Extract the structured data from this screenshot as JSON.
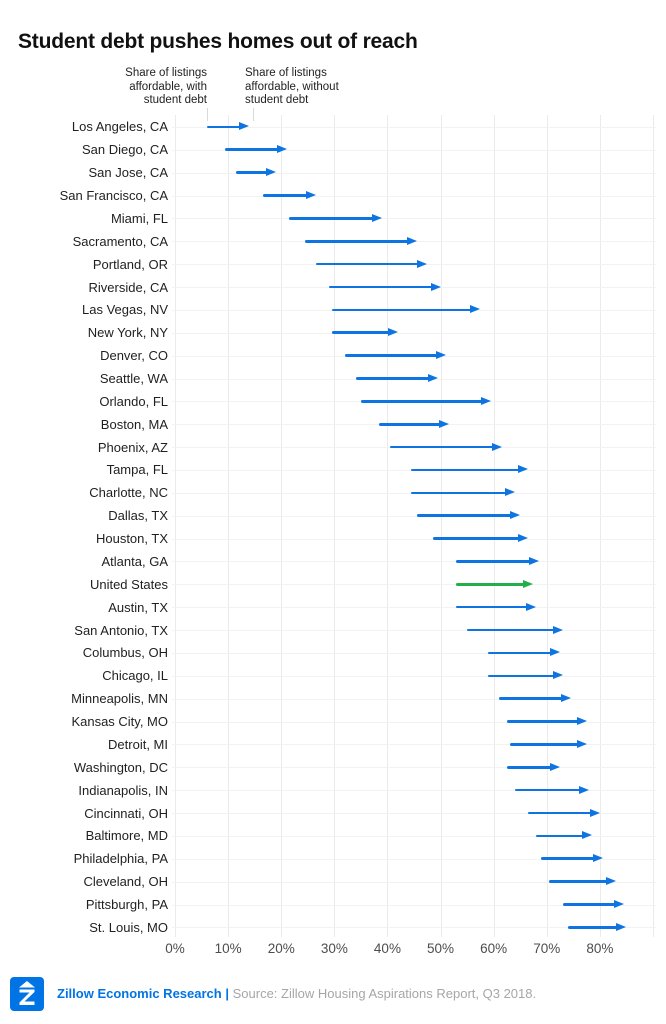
{
  "title": "Student debt pushes homes out of reach",
  "annotations": {
    "left": [
      "Share of listings",
      "affordable, with",
      "student debt"
    ],
    "right": [
      "Share of listings",
      "affordable, without",
      "student debt"
    ]
  },
  "chart_data": {
    "type": "bar",
    "variant": "arrow-dumbbell",
    "orientation": "horizontal",
    "title": "Student debt pushes homes out of reach",
    "categories": [
      "Los Angeles, CA",
      "San Diego, CA",
      "San Jose, CA",
      "San Francisco, CA",
      "Miami, FL",
      "Sacramento, CA",
      "Portland, OR",
      "Riverside, CA",
      "Las Vegas, NV",
      "New York, NY",
      "Denver, CO",
      "Seattle, WA",
      "Orlando, FL",
      "Boston, MA",
      "Phoenix, AZ",
      "Tampa, FL",
      "Charlotte, NC",
      "Dallas, TX",
      "Houston, TX",
      "Atlanta, GA",
      "United States",
      "Austin, TX",
      "San Antonio, TX",
      "Columbus, OH",
      "Chicago, IL",
      "Minneapolis, MN",
      "Kansas City, MO",
      "Detroit, MI",
      "Washington, DC",
      "Indianapolis, IN",
      "Cincinnati, OH",
      "Baltimore, MD",
      "Philadelphia, PA",
      "Cleveland, OH",
      "Pittsburgh, PA",
      "St. Louis, MO"
    ],
    "series": [
      {
        "name": "Share of listings affordable, with student debt",
        "values": [
          6,
          9.5,
          11.5,
          16.5,
          21.5,
          24.5,
          26.5,
          29,
          29.5,
          29.5,
          32,
          34,
          35,
          38.5,
          40.5,
          44.5,
          44.5,
          45.5,
          48.5,
          53,
          53,
          53,
          55,
          59,
          59,
          61,
          62.5,
          63,
          62.5,
          64,
          66.5,
          68,
          69,
          70.5,
          73,
          74
        ]
      },
      {
        "name": "Share of listings affordable, without student debt",
        "values": [
          14,
          21,
          19,
          26.5,
          39,
          45.5,
          47.5,
          50,
          57.5,
          42,
          51,
          49.5,
          59.5,
          51.5,
          61.5,
          66.5,
          64,
          65,
          66.5,
          68.5,
          67.5,
          68,
          73,
          72.5,
          73,
          74.5,
          77.5,
          77.5,
          72.5,
          78,
          80,
          78.5,
          80.5,
          83,
          84.5,
          85
        ]
      }
    ],
    "highlight_category": "United States",
    "xlabel": "",
    "ylabel": "",
    "xlim": [
      0,
      90
    ],
    "grid_step": 10,
    "xticks": [
      "0%",
      "10%",
      "20%",
      "30%",
      "40%",
      "50%",
      "60%",
      "70%",
      "80%"
    ],
    "grid": true,
    "colors": {
      "arrow": "#0d74e2",
      "highlight": "#22ae4a"
    }
  },
  "footer": {
    "brand": "Zillow Economic Research",
    "divider": "|",
    "source": "Source: Zillow Housing Aspirations Report, Q3 2018.",
    "logo": "zillow-logo"
  }
}
